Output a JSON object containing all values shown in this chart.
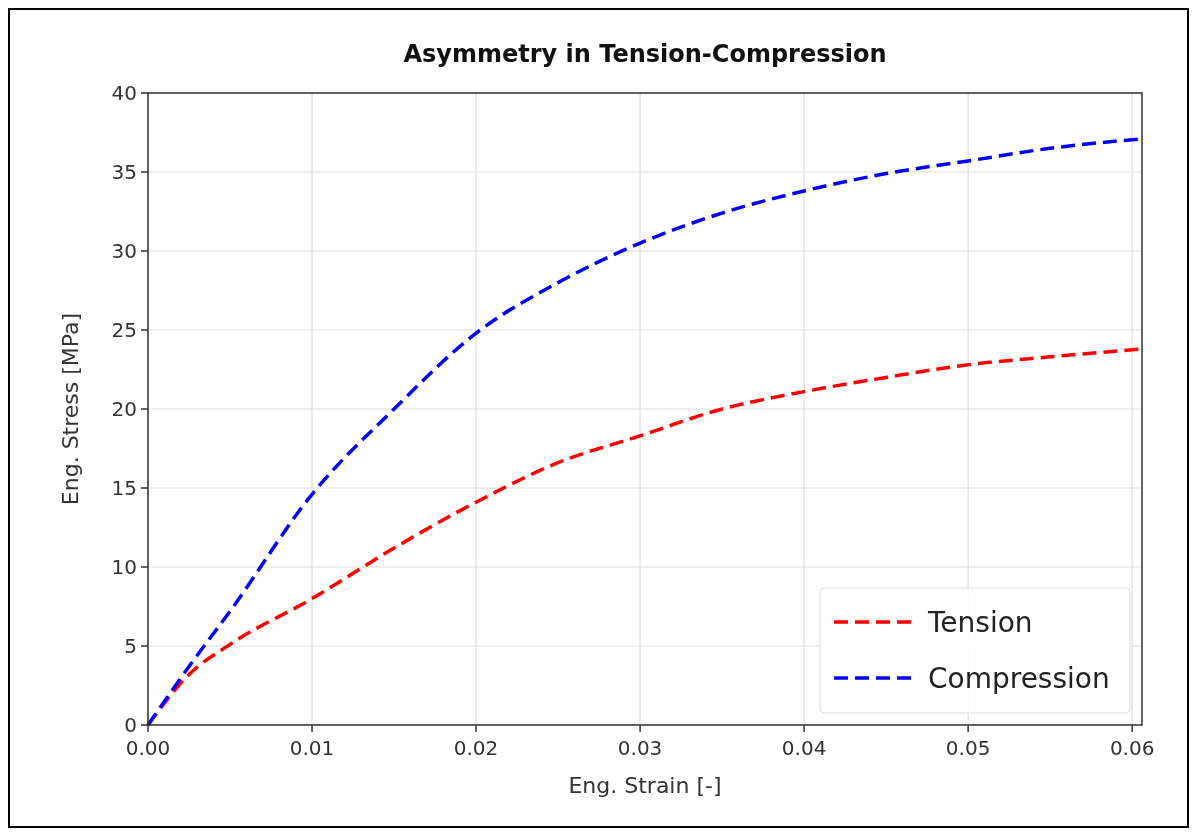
{
  "chart_data": {
    "type": "line",
    "title": "Asymmetry in Tension-Compression",
    "xlabel": "Eng. Strain [-]",
    "ylabel": "Eng. Stress [MPa]",
    "xlim": [
      0,
      0.0606
    ],
    "ylim": [
      0,
      40
    ],
    "xticks": [
      {
        "value": 0,
        "label": "0.00"
      },
      {
        "value": 0.01,
        "label": "0.01"
      },
      {
        "value": 0.02,
        "label": "0.02"
      },
      {
        "value": 0.03,
        "label": "0.03"
      },
      {
        "value": 0.04,
        "label": "0.04"
      },
      {
        "value": 0.05,
        "label": "0.05"
      },
      {
        "value": 0.06,
        "label": "0.06"
      }
    ],
    "yticks": [
      0,
      5,
      10,
      15,
      20,
      25,
      30,
      35,
      40
    ],
    "grid": true,
    "legend": "bottom right",
    "line_style": "dashed",
    "marker": "none",
    "x": [
      0,
      0.0025,
      0.005,
      0.01,
      0.015,
      0.02,
      0.025,
      0.03,
      0.035,
      0.04,
      0.045,
      0.05,
      0.055,
      0.0606
    ],
    "series": [
      {
        "name": "Tension",
        "color": "#ff0000",
        "values": [
          0,
          3.2,
          5.1,
          8.0,
          11.2,
          14.1,
          16.6,
          18.3,
          20.0,
          21.1,
          22.0,
          22.8,
          23.3,
          23.8
        ]
      },
      {
        "name": "Compression",
        "color": "#0000ff",
        "values": [
          0,
          3.7,
          7.2,
          14.6,
          20.0,
          24.8,
          28.0,
          30.5,
          32.4,
          33.8,
          34.9,
          35.7,
          36.5,
          37.1
        ]
      }
    ]
  }
}
